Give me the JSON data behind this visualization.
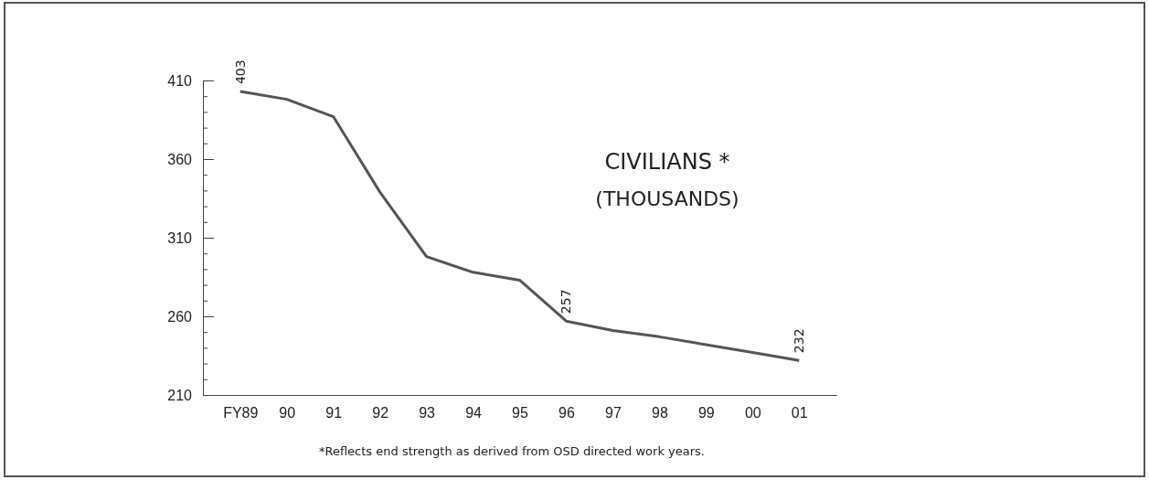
{
  "chart_data": {
    "type": "line",
    "title": "CIVILIANS *",
    "subtitle": "(THOUSANDS)",
    "categories": [
      "FY89",
      "90",
      "91",
      "92",
      "93",
      "94",
      "95",
      "96",
      "97",
      "98",
      "99",
      "00",
      "01"
    ],
    "values": [
      403,
      398,
      387,
      339,
      298,
      288,
      283,
      257,
      251,
      247,
      242,
      237,
      232
    ],
    "value_labels": [
      "403",
      null,
      null,
      null,
      null,
      null,
      null,
      "257",
      null,
      null,
      null,
      null,
      "232"
    ],
    "color": "#555555",
    "ylim": [
      210,
      410
    ],
    "yticks": [
      210,
      {
        "value": 220,
        "label": null
      },
      {
        "value": 230,
        "label": null
      },
      {
        "value": 240,
        "label": null
      },
      {
        "value": 250,
        "label": null
      },
      260,
      {
        "value": 270,
        "label": null
      },
      {
        "value": 280,
        "label": null
      },
      {
        "value": 290,
        "label": null
      },
      {
        "value": 300,
        "label": null
      },
      310,
      {
        "value": 320,
        "label": null
      },
      {
        "value": 330,
        "label": null
      },
      {
        "value": 340,
        "label": null
      },
      {
        "value": 350,
        "label": null
      },
      360,
      {
        "value": 370,
        "label": null
      },
      {
        "value": 380,
        "label": null
      },
      {
        "value": 390,
        "label": null
      },
      {
        "value": 400,
        "label": null
      },
      410
    ],
    "grid": false,
    "marker": "none",
    "line_style": "solid",
    "annotations": [
      "*Reflects end strength as derived from OSD directed work years."
    ]
  }
}
